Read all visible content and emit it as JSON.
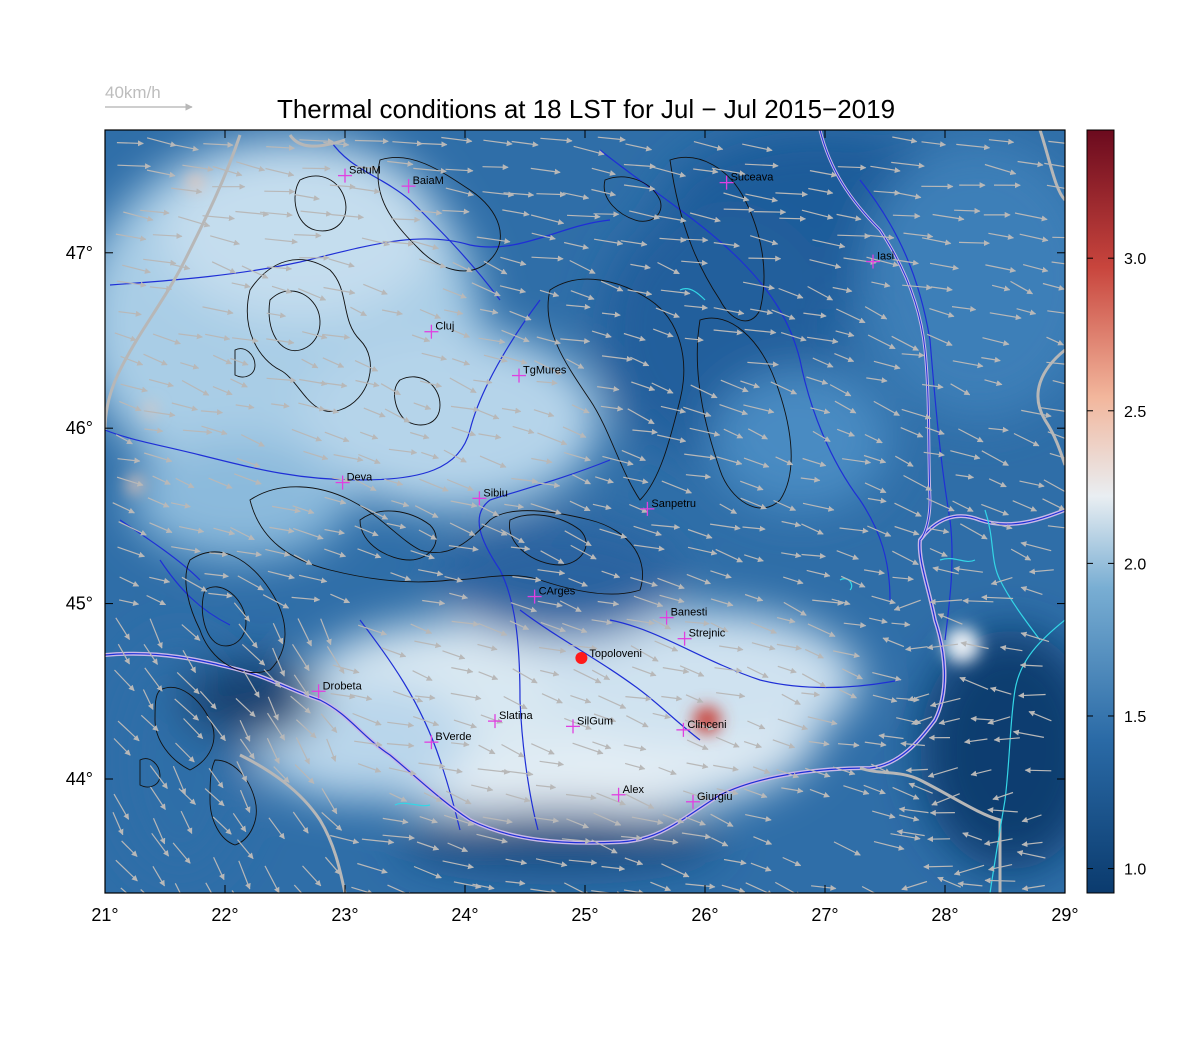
{
  "title": "Thermal conditions at 18 LST for Jul − Jul  2015−2019",
  "wind_reference": {
    "label": "40km/h"
  },
  "axes": {
    "lon_ticks": [
      "21°",
      "22°",
      "23°",
      "24°",
      "25°",
      "26°",
      "27°",
      "28°",
      "29°"
    ],
    "lat_ticks": [
      "44°",
      "45°",
      "46°",
      "47°"
    ],
    "lon_range": [
      21,
      29
    ],
    "lat_range": [
      43.35,
      47.7
    ]
  },
  "colorbar": {
    "ticks": [
      "1.0",
      "1.5",
      "2.0",
      "2.5",
      "3.0"
    ],
    "range": [
      0.92,
      3.42
    ],
    "colors": [
      "#0b3b6e",
      "#2a6aa6",
      "#79aed3",
      "#e9eef2",
      "#f2b69c",
      "#c8453d",
      "#6b0a1e"
    ]
  },
  "stations": [
    {
      "name": "SatuM",
      "lon": 23.0,
      "lat": 47.44
    },
    {
      "name": "BaiaM",
      "lon": 23.53,
      "lat": 47.38
    },
    {
      "name": "Suceava",
      "lon": 26.18,
      "lat": 47.4
    },
    {
      "name": "Iasi",
      "lon": 27.4,
      "lat": 46.95
    },
    {
      "name": "Cluj",
      "lon": 23.72,
      "lat": 46.55
    },
    {
      "name": "TgMures",
      "lon": 24.45,
      "lat": 46.3
    },
    {
      "name": "Deva",
      "lon": 22.98,
      "lat": 45.69
    },
    {
      "name": "Sibiu",
      "lon": 24.12,
      "lat": 45.6
    },
    {
      "name": "Sanpetru",
      "lon": 25.52,
      "lat": 45.54
    },
    {
      "name": "CArges",
      "lon": 24.58,
      "lat": 45.04
    },
    {
      "name": "Banesti",
      "lon": 25.68,
      "lat": 44.92
    },
    {
      "name": "Strejnic",
      "lon": 25.83,
      "lat": 44.8
    },
    {
      "name": "Drobeta",
      "lon": 22.78,
      "lat": 44.5
    },
    {
      "name": "Slatina",
      "lon": 24.25,
      "lat": 44.33
    },
    {
      "name": "SilGum",
      "lon": 24.9,
      "lat": 44.3
    },
    {
      "name": "BVerde",
      "lon": 23.72,
      "lat": 44.21
    },
    {
      "name": "Clinceni",
      "lon": 25.82,
      "lat": 44.28
    },
    {
      "name": "Alex",
      "lon": 25.28,
      "lat": 43.91
    },
    {
      "name": "Giurgiu",
      "lon": 25.9,
      "lat": 43.87
    }
  ],
  "highlight_station": {
    "name": "Topoloveni",
    "lon": 24.97,
    "lat": 44.69
  }
}
